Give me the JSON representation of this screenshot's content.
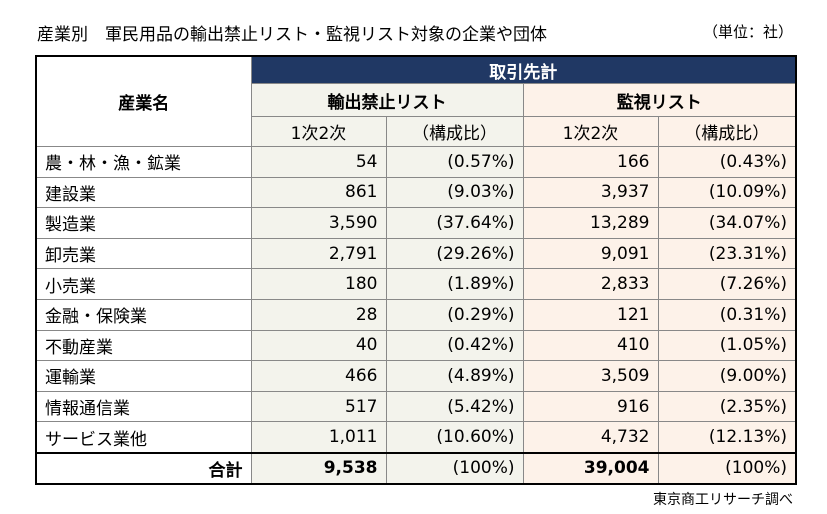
{
  "title": "産業別　軍民用品の輸出禁止リスト・監視リスト対象の企業や団体",
  "unit": "（単位：社）",
  "table": {
    "header": {
      "corner": "産業名",
      "group": "取引先計",
      "lists": [
        "輸出禁止リスト",
        "監視リスト"
      ],
      "subheads": [
        "1次2次",
        "（構成比）",
        "1次2次",
        "（構成比）"
      ]
    },
    "rows": [
      [
        "農・林・漁・鉱業",
        "54",
        "(0.57%)",
        "166",
        "(0.43%)"
      ],
      [
        "建設業",
        "861",
        "(9.03%)",
        "3,937",
        "(10.09%)"
      ],
      [
        "製造業",
        "3,590",
        "(37.64%)",
        "13,289",
        "(34.07%)"
      ],
      [
        "卸売業",
        "2,791",
        "(29.26%)",
        "9,091",
        "(23.31%)"
      ],
      [
        "小売業",
        "180",
        "(1.89%)",
        "2,833",
        "(7.26%)"
      ],
      [
        "金融・保険業",
        "28",
        "(0.29%)",
        "121",
        "(0.31%)"
      ],
      [
        "不動産業",
        "40",
        "(0.42%)",
        "410",
        "(1.05%)"
      ],
      [
        "運輸業",
        "466",
        "(4.89%)",
        "3,509",
        "(9.00%)"
      ],
      [
        "情報通信業",
        "517",
        "(5.42%)",
        "916",
        "(2.35%)"
      ],
      [
        "サービス業他",
        "1,011",
        "(10.60%)",
        "4,732",
        "(12.13%)"
      ]
    ],
    "total": [
      "合計",
      "9,538",
      "(100%)",
      "39,004",
      "(100%)"
    ]
  },
  "source": "東京商工リサーチ調べ"
}
